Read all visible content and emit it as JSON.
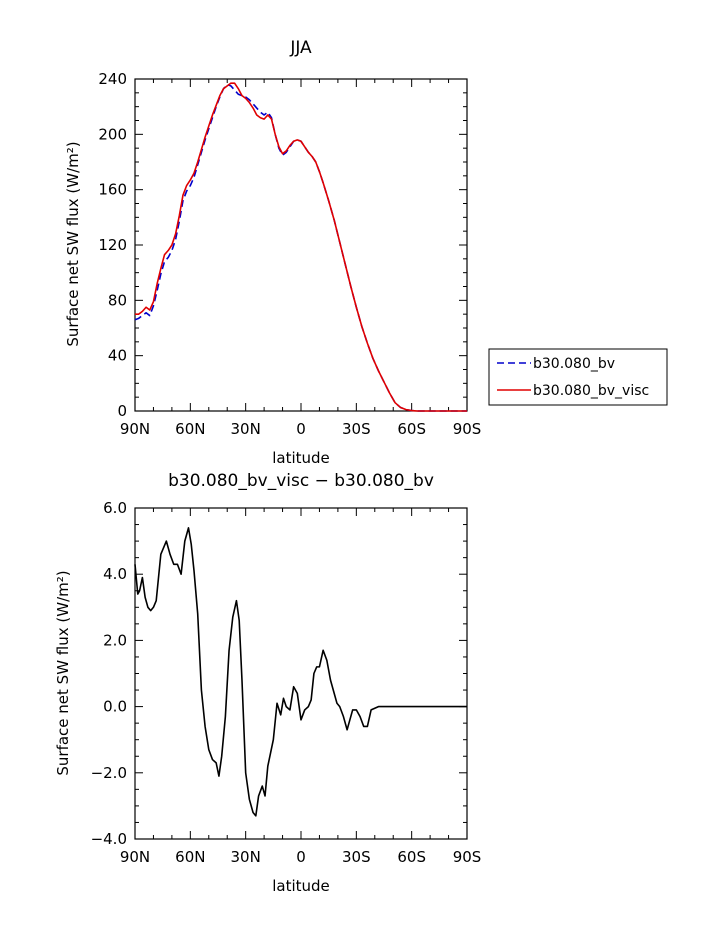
{
  "chart_data": [
    {
      "type": "line",
      "title": "JJA",
      "xlabel": "latitude",
      "ylabel": "Surface net SW flux (W/m²)",
      "xlim": [
        -90,
        90
      ],
      "ylim": [
        0,
        240
      ],
      "x_ticks": [
        {
          "value": -90,
          "label": "90N"
        },
        {
          "value": -60,
          "label": "60N"
        },
        {
          "value": -30,
          "label": "30N"
        },
        {
          "value": 0,
          "label": "0"
        },
        {
          "value": 30,
          "label": "30S"
        },
        {
          "value": 60,
          "label": "60S"
        },
        {
          "value": 90,
          "label": "90S"
        }
      ],
      "y_ticks": [
        {
          "value": 0,
          "label": "0"
        },
        {
          "value": 40,
          "label": "40"
        },
        {
          "value": 80,
          "label": "80"
        },
        {
          "value": 120,
          "label": "120"
        },
        {
          "value": 160,
          "label": "160"
        },
        {
          "value": 200,
          "label": "200"
        },
        {
          "value": 240,
          "label": "240"
        }
      ],
      "legend_position": "right",
      "series": [
        {
          "name": "b30.080_bv",
          "color": "#0000cc",
          "style": "dashed",
          "x": [
            -90,
            -88,
            -86,
            -84,
            -82,
            -80,
            -78,
            -76,
            -74,
            -72,
            -70,
            -68,
            -66,
            -64,
            -62,
            -60,
            -58,
            -56,
            -54,
            -52,
            -50,
            -48,
            -46,
            -44,
            -42,
            -40,
            -38,
            -36,
            -34,
            -32,
            -30,
            -28,
            -26,
            -24,
            -22,
            -20,
            -18,
            -16,
            -14,
            -12,
            -10,
            -8,
            -6,
            -4,
            -2,
            0,
            2,
            4,
            6,
            8,
            10,
            12,
            15,
            18,
            21,
            24,
            27,
            30,
            33,
            36,
            39,
            42,
            45,
            48,
            51,
            54,
            57,
            60,
            63,
            66,
            70,
            75,
            80,
            85,
            90
          ],
          "y": [
            66,
            67,
            69,
            71,
            69,
            76,
            87,
            99,
            108,
            111,
            116,
            124,
            137,
            152,
            159,
            163,
            169,
            178,
            187,
            196,
            204,
            212,
            220,
            227,
            233,
            236,
            235,
            232,
            229,
            228,
            227,
            225,
            222,
            219,
            216,
            214,
            216,
            212,
            200,
            190,
            185,
            187,
            191,
            195,
            196,
            195,
            191,
            187,
            184,
            180,
            173,
            165,
            152,
            138,
            122,
            106,
            90,
            75,
            61,
            49,
            38,
            29,
            21,
            13,
            6,
            2.5,
            1,
            0.3,
            0,
            0,
            0,
            0,
            0,
            0,
            0
          ]
        },
        {
          "name": "b30.080_bv_visc",
          "color": "#e00000",
          "style": "solid",
          "x": [
            -90,
            -88,
            -86,
            -84,
            -82,
            -80,
            -78,
            -76,
            -74,
            -72,
            -70,
            -68,
            -66,
            -64,
            -62,
            -60,
            -58,
            -56,
            -54,
            -52,
            -50,
            -48,
            -46,
            -44,
            -42,
            -40,
            -38,
            -36,
            -34,
            -32,
            -30,
            -28,
            -26,
            -24,
            -22,
            -20,
            -18,
            -16,
            -14,
            -12,
            -10,
            -8,
            -6,
            -4,
            -2,
            0,
            2,
            4,
            6,
            8,
            10,
            12,
            15,
            18,
            21,
            24,
            27,
            30,
            33,
            36,
            39,
            42,
            45,
            48,
            51,
            54,
            57,
            60,
            63,
            66,
            70,
            75,
            80,
            85,
            90
          ],
          "y": [
            70,
            70,
            72,
            75,
            73,
            79,
            92,
            103,
            113,
            116,
            120,
            128,
            141,
            156,
            163,
            167,
            172,
            180,
            189,
            198,
            206,
            214,
            221,
            228,
            233,
            235,
            237,
            237,
            233,
            228,
            226,
            223,
            219,
            214,
            212,
            211,
            214,
            211,
            200,
            191,
            186,
            188,
            192,
            195,
            196,
            195,
            191,
            187,
            184,
            180,
            173,
            165,
            152,
            138,
            122,
            106,
            90,
            75,
            61,
            49,
            38,
            29,
            21,
            13,
            6,
            2.5,
            1,
            0.3,
            0,
            0,
            0,
            0,
            0,
            0,
            0
          ]
        }
      ]
    },
    {
      "type": "line",
      "title": "b30.080_bv_visc − b30.080_bv",
      "xlabel": "latitude",
      "ylabel": "Surface net SW flux (W/m²)",
      "xlim": [
        -90,
        90
      ],
      "ylim": [
        -4,
        6
      ],
      "x_ticks": [
        {
          "value": -90,
          "label": "90N"
        },
        {
          "value": -60,
          "label": "60N"
        },
        {
          "value": -30,
          "label": "30N"
        },
        {
          "value": 0,
          "label": "0"
        },
        {
          "value": 30,
          "label": "30S"
        },
        {
          "value": 60,
          "label": "60S"
        },
        {
          "value": 90,
          "label": "90S"
        }
      ],
      "y_ticks": [
        {
          "value": -4,
          "label": "−4.0"
        },
        {
          "value": -2,
          "label": "−2.0"
        },
        {
          "value": 0,
          "label": "0.0"
        },
        {
          "value": 2,
          "label": "2.0"
        },
        {
          "value": 4,
          "label": "4.0"
        },
        {
          "value": 6,
          "label": "6.0"
        }
      ],
      "series": [
        {
          "color": "#000000",
          "style": "solid",
          "x": [
            -90,
            -88.5,
            -87.5,
            -86,
            -84.5,
            -83,
            -81.5,
            -80,
            -78.5,
            -76,
            -73,
            -71,
            -69,
            -67,
            -65,
            -63,
            -61,
            -59.5,
            -58,
            -56,
            -54,
            -52,
            -50,
            -48,
            -46,
            -44.5,
            -43,
            -41,
            -39,
            -37,
            -35,
            -33.5,
            -32,
            -30,
            -28,
            -26,
            -24.5,
            -23,
            -21,
            -19.5,
            -18,
            -16.5,
            -15,
            -13,
            -11,
            -9.5,
            -8,
            -6,
            -4,
            -2,
            0,
            2,
            4,
            5.5,
            7,
            8.5,
            10,
            12,
            14,
            16,
            18,
            19.5,
            21,
            23,
            25,
            26.5,
            28,
            30,
            32,
            34,
            36,
            38,
            40,
            42,
            44,
            47,
            50,
            52,
            54,
            56,
            58,
            60,
            62,
            64,
            68,
            72,
            78,
            84,
            90
          ],
          "y": [
            4.3,
            3.4,
            3.5,
            3.9,
            3.3,
            3.0,
            2.9,
            3.0,
            3.2,
            4.6,
            5.0,
            4.6,
            4.3,
            4.3,
            4.0,
            5.0,
            5.4,
            4.9,
            4.1,
            2.8,
            0.5,
            -0.6,
            -1.3,
            -1.6,
            -1.7,
            -2.1,
            -1.5,
            -0.3,
            1.7,
            2.7,
            3.2,
            2.6,
            0.8,
            -2.0,
            -2.8,
            -3.2,
            -3.3,
            -2.7,
            -2.4,
            -2.7,
            -1.8,
            -1.4,
            -1.0,
            0.1,
            -0.25,
            0.25,
            0.0,
            -0.1,
            0.6,
            0.4,
            -0.4,
            -0.1,
            0.0,
            0.2,
            1.0,
            1.2,
            1.2,
            1.7,
            1.4,
            0.8,
            0.4,
            0.1,
            0.0,
            -0.3,
            -0.7,
            -0.4,
            -0.1,
            -0.1,
            -0.3,
            -0.6,
            -0.6,
            -0.1,
            -0.05,
            0.0,
            0.0,
            0.0,
            0.0,
            0.0,
            0.0,
            0.0,
            0.0,
            0.0,
            0.0,
            0.0,
            0.0,
            0.0,
            0.0,
            0.0,
            0.0
          ]
        }
      ]
    }
  ]
}
